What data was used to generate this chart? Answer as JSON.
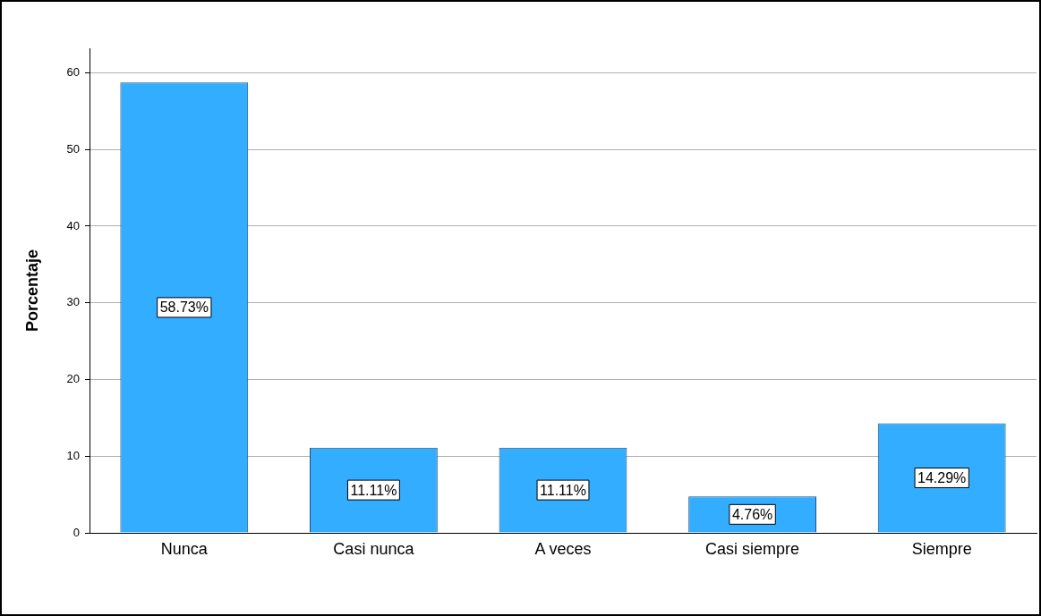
{
  "chart_data": {
    "type": "bar",
    "ylabel": "Porcentaje",
    "categories": [
      "Nunca",
      "Casi nunca",
      "A veces",
      "Casi siempre",
      "Siempre"
    ],
    "values": [
      58.73,
      11.11,
      11.11,
      4.76,
      14.29
    ],
    "value_labels": [
      "58.73%",
      "11.11%",
      "11.11%",
      "4.76%",
      "14.29%"
    ],
    "color": "#33adff",
    "ylim": [
      0,
      63.2
    ],
    "yticks": [
      0,
      10,
      20,
      30,
      40,
      50,
      60
    ],
    "grid": "y",
    "legend": false
  }
}
